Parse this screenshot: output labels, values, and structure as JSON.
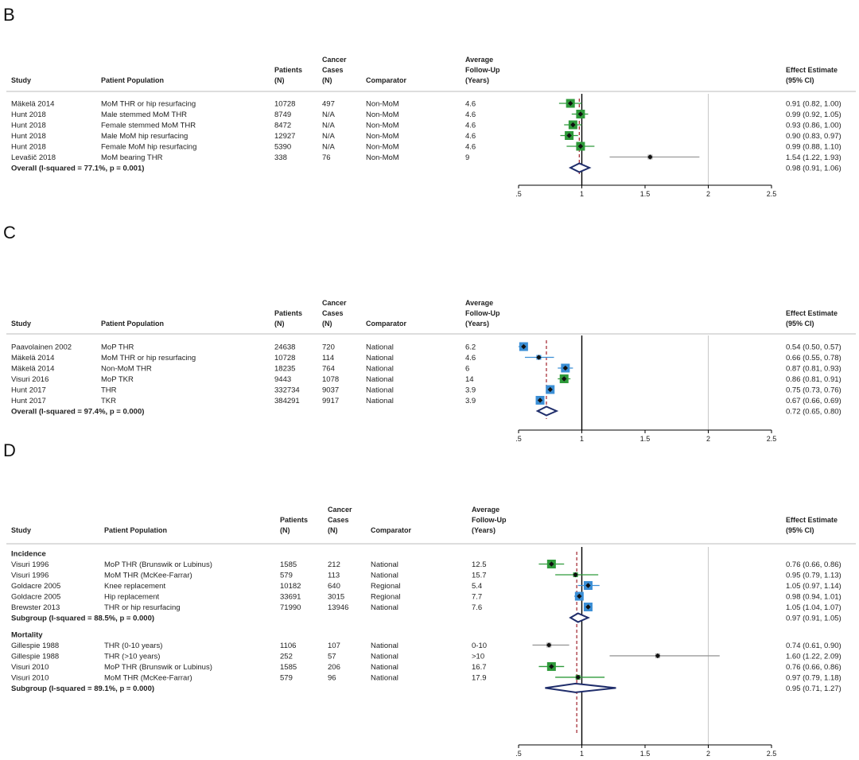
{
  "columns": [
    "Study",
    "Patient Population",
    "Patients (N)",
    "Cancer Cases (N)",
    "Comparator",
    "Average Follow-Up (Years)",
    "Effect Estimate (95% CI)"
  ],
  "chart_data": [
    {
      "type": "forest",
      "panel_label": "B",
      "header": {
        "study": "Study",
        "population": "Patient Population",
        "patients": [
          "Patients",
          "(N)"
        ],
        "cases": [
          "Cancer",
          "Cases",
          "(N)"
        ],
        "comparator": "Comparator",
        "followup": [
          "Average",
          "Follow-Up",
          "(Years)"
        ],
        "effect": [
          "Effect Estimate",
          "(95% CI)"
        ]
      },
      "x_ticks": [
        ".5",
        "1",
        "1.5",
        "2",
        "2.5"
      ],
      "x_tick_values": [
        0.5,
        1,
        1.5,
        2,
        2.5
      ],
      "reference_line": 1,
      "pooled_line": 0.98,
      "rows": [
        {
          "kind": "study",
          "study": "Mäkelä 2014",
          "population": "MoM THR or hip resurfacing",
          "patients": "10728",
          "cases": "497",
          "comparator": "Non-MoM",
          "followup": "4.6",
          "est": 0.91,
          "lo": 0.82,
          "hi": 1.0,
          "effect": "0.91 (0.82, 1.00)",
          "color": "#2e9a3a",
          "weight": "large"
        },
        {
          "kind": "study",
          "study": "Hunt 2018",
          "population": "Male stemmed MoM THR",
          "patients": "8749",
          "cases": "N/A",
          "comparator": "Non-MoM",
          "followup": "4.6",
          "est": 0.99,
          "lo": 0.92,
          "hi": 1.05,
          "effect": "0.99 (0.92, 1.05)",
          "color": "#2e9a3a",
          "weight": "large"
        },
        {
          "kind": "study",
          "study": "Hunt 2018",
          "population": "Female stemmed MoM THR",
          "patients": "8472",
          "cases": "N/A",
          "comparator": "Non-MoM",
          "followup": "4.6",
          "est": 0.93,
          "lo": 0.86,
          "hi": 1.0,
          "effect": "0.93 (0.86, 1.00)",
          "color": "#2e9a3a",
          "weight": "large"
        },
        {
          "kind": "study",
          "study": "Hunt 2018",
          "population": "Male MoM hip resurfacing",
          "patients": "12927",
          "cases": "N/A",
          "comparator": "Non-MoM",
          "followup": "4.6",
          "est": 0.9,
          "lo": 0.83,
          "hi": 0.97,
          "effect": "0.90 (0.83, 0.97)",
          "color": "#2e9a3a",
          "weight": "large"
        },
        {
          "kind": "study",
          "study": "Hunt 2018",
          "population": "Female MoM hip resurfacing",
          "patients": "5390",
          "cases": "N/A",
          "comparator": "Non-MoM",
          "followup": "4.6",
          "est": 0.99,
          "lo": 0.88,
          "hi": 1.1,
          "effect": "0.99 (0.88, 1.10)",
          "color": "#2e9a3a",
          "weight": "large"
        },
        {
          "kind": "study",
          "study": "Levašič 2018",
          "population": "MoM bearing THR",
          "patients": "338",
          "cases": "76",
          "comparator": "Non-MoM",
          "followup": "9",
          "est": 1.54,
          "lo": 1.22,
          "hi": 1.93,
          "effect": "1.54 (1.22, 1.93)",
          "color": "#aaaaaa",
          "weight": "small"
        },
        {
          "kind": "overall",
          "study": "Overall (I-squared = 77.1%, p = 0.001)",
          "est": 0.98,
          "lo": 0.91,
          "hi": 1.06,
          "effect": "0.98 (0.91, 1.06)"
        }
      ]
    },
    {
      "type": "forest",
      "panel_label": "C",
      "header": {
        "study": "Study",
        "population": "Patient Population",
        "patients": [
          "Patients",
          "(N)"
        ],
        "cases": [
          "Cancer",
          "Cases",
          "(N)"
        ],
        "comparator": "Comparator",
        "followup": [
          "Average",
          "Follow-Up",
          "(Years)"
        ],
        "effect": [
          "Effect Estimate",
          "(95% CI)"
        ]
      },
      "x_ticks": [
        ".5",
        "1",
        "1.5",
        "2",
        "2.5"
      ],
      "x_tick_values": [
        0.5,
        1,
        1.5,
        2,
        2.5
      ],
      "reference_line": 1,
      "pooled_line": 0.72,
      "rows": [
        {
          "kind": "study",
          "study": "Paavolainen 2002",
          "population": "MoP THR",
          "patients": "24638",
          "cases": "720",
          "comparator": "National",
          "followup": "6.2",
          "est": 0.54,
          "lo": 0.5,
          "hi": 0.57,
          "effect": "0.54 (0.50, 0.57)",
          "color": "#3b8fd6",
          "weight": "large"
        },
        {
          "kind": "study",
          "study": "Mäkelä 2014",
          "population": "MoM THR or hip resurfacing",
          "patients": "10728",
          "cases": "114",
          "comparator": "National",
          "followup": "4.6",
          "est": 0.66,
          "lo": 0.55,
          "hi": 0.78,
          "effect": "0.66 (0.55, 0.78)",
          "color": "#3b8fd6",
          "weight": "small"
        },
        {
          "kind": "study",
          "study": "Mäkelä 2014",
          "population": "Non-MoM THR",
          "patients": "18235",
          "cases": "764",
          "comparator": "National",
          "followup": "6",
          "est": 0.87,
          "lo": 0.81,
          "hi": 0.93,
          "effect": "0.87 (0.81, 0.93)",
          "color": "#3b8fd6",
          "weight": "large"
        },
        {
          "kind": "study",
          "study": "Visuri 2016",
          "population": "MoP TKR",
          "patients": "9443",
          "cases": "1078",
          "comparator": "National",
          "followup": "14",
          "est": 0.86,
          "lo": 0.81,
          "hi": 0.91,
          "effect": "0.86 (0.81, 0.91)",
          "color": "#2e9a3a",
          "weight": "large"
        },
        {
          "kind": "study",
          "study": "Hunt 2017",
          "population": "THR",
          "patients": "332734",
          "cases": "9037",
          "comparator": "National",
          "followup": "3.9",
          "est": 0.75,
          "lo": 0.73,
          "hi": 0.76,
          "effect": "0.75 (0.73, 0.76)",
          "color": "#3b8fd6",
          "weight": "large"
        },
        {
          "kind": "study",
          "study": "Hunt 2017",
          "population": "TKR",
          "patients": "384291",
          "cases": "9917",
          "comparator": "National",
          "followup": "3.9",
          "est": 0.67,
          "lo": 0.66,
          "hi": 0.69,
          "effect": "0.67 (0.66, 0.69)",
          "color": "#3b8fd6",
          "weight": "large"
        },
        {
          "kind": "overall",
          "study": "Overall (I-squared = 97.4%, p = 0.000)",
          "est": 0.72,
          "lo": 0.65,
          "hi": 0.8,
          "effect": "0.72 (0.65, 0.80)"
        }
      ]
    },
    {
      "type": "forest",
      "panel_label": "D",
      "header": {
        "study": "Study",
        "population": "Patient Population",
        "patients": [
          "Patients",
          "(N)"
        ],
        "cases": [
          "Cancer",
          "Cases",
          "(N)"
        ],
        "comparator": "Comparator",
        "followup": [
          "Average",
          "Follow-Up",
          "(Years)"
        ],
        "effect": [
          "Effect Estimate",
          "(95% CI)"
        ]
      },
      "x_ticks": [
        ".5",
        "1",
        "1.5",
        "2",
        "2.5"
      ],
      "x_tick_values": [
        0.5,
        1,
        1.5,
        2,
        2.5
      ],
      "reference_line": 1,
      "pooled_line": 0.96,
      "rows": [
        {
          "kind": "group",
          "study": "Incidence"
        },
        {
          "kind": "study",
          "study": "Visuri 1996",
          "population": "MoP THR (Brunswik or Lubinus)",
          "patients": "1585",
          "cases": "212",
          "comparator": "National",
          "followup": "12.5",
          "est": 0.76,
          "lo": 0.66,
          "hi": 0.86,
          "effect": "0.76 (0.66, 0.86)",
          "color": "#2e9a3a",
          "weight": "large"
        },
        {
          "kind": "study",
          "study": "Visuri 1996",
          "population": "MoM THR (McKee-Farrar)",
          "patients": "579",
          "cases": "113",
          "comparator": "National",
          "followup": "15.7",
          "est": 0.95,
          "lo": 0.79,
          "hi": 1.13,
          "effect": "0.95 (0.79, 1.13)",
          "color": "#2e9a3a",
          "weight": "small"
        },
        {
          "kind": "study",
          "study": "Goldacre 2005",
          "population": "Knee replacement",
          "patients": "10182",
          "cases": "640",
          "comparator": "Regional",
          "followup": "5.4",
          "est": 1.05,
          "lo": 0.97,
          "hi": 1.14,
          "effect": "1.05 (0.97, 1.14)",
          "color": "#3b8fd6",
          "weight": "large"
        },
        {
          "kind": "study",
          "study": "Goldacre 2005",
          "population": "Hip replacement",
          "patients": "33691",
          "cases": "3015",
          "comparator": "Regional",
          "followup": "7.7",
          "est": 0.98,
          "lo": 0.94,
          "hi": 1.01,
          "effect": "0.98 (0.94, 1.01)",
          "color": "#3b8fd6",
          "weight": "large"
        },
        {
          "kind": "study",
          "study": "Brewster 2013",
          "population": "THR or hip resurfacing",
          "patients": "71990",
          "cases": "13946",
          "comparator": "National",
          "followup": "7.6",
          "est": 1.05,
          "lo": 1.04,
          "hi": 1.07,
          "effect": "1.05 (1.04, 1.07)",
          "color": "#3b8fd6",
          "weight": "large"
        },
        {
          "kind": "overall",
          "study": "Subgroup (I-squared = 88.5%, p = 0.000)",
          "est": 0.97,
          "lo": 0.91,
          "hi": 1.05,
          "effect": "0.97 (0.91, 1.05)"
        },
        {
          "kind": "group",
          "study": "Mortality"
        },
        {
          "kind": "study",
          "study": "Gillespie 1988",
          "population": "THR (0-10 years)",
          "patients": "1106",
          "cases": "107",
          "comparator": "National",
          "followup": "0-10",
          "est": 0.74,
          "lo": 0.61,
          "hi": 0.9,
          "effect": "0.74 (0.61, 0.90)",
          "color": "#aaaaaa",
          "weight": "small"
        },
        {
          "kind": "study",
          "study": "Gillespie 1988",
          "population": "THR (>10 years)",
          "patients": "252",
          "cases": "57",
          "comparator": "National",
          "followup": ">10",
          "est": 1.6,
          "lo": 1.22,
          "hi": 2.09,
          "effect": "1.60 (1.22, 2.09)",
          "color": "#aaaaaa",
          "weight": "small"
        },
        {
          "kind": "study",
          "study": "Visuri 2010",
          "population": "MoP THR (Brunswik or Lubinus)",
          "patients": "1585",
          "cases": "206",
          "comparator": "National",
          "followup": "16.7",
          "est": 0.76,
          "lo": 0.66,
          "hi": 0.86,
          "effect": "0.76 (0.66, 0.86)",
          "color": "#2e9a3a",
          "weight": "large"
        },
        {
          "kind": "study",
          "study": "Visuri 2010",
          "population": "MoM THR (McKee-Farrar)",
          "patients": "579",
          "cases": "96",
          "comparator": "National",
          "followup": "17.9",
          "est": 0.97,
          "lo": 0.79,
          "hi": 1.18,
          "effect": "0.97 (0.79, 1.18)",
          "color": "#2e9a3a",
          "weight": "small"
        },
        {
          "kind": "overall",
          "study": "Subgroup (I-squared = 89.1%, p = 0.000)",
          "est": 0.95,
          "lo": 0.71,
          "hi": 1.27,
          "effect": "0.95 (0.71, 1.27)"
        }
      ]
    }
  ]
}
